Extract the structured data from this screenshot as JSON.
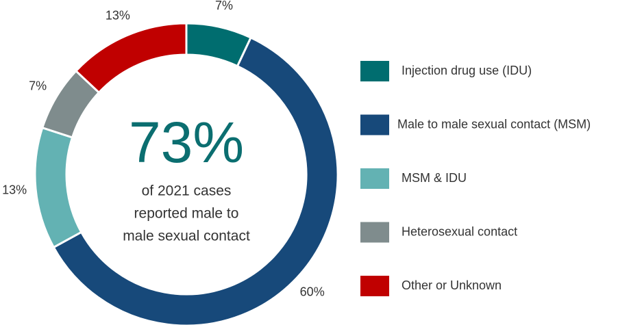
{
  "chart_data": {
    "type": "donut",
    "categories": [
      "Injection drug use (IDU)",
      "Male to male sexual contact (MSM)",
      "MSM & IDU",
      "Heterosexual contact",
      "Other or Unknown"
    ],
    "values": [
      7,
      60,
      13,
      7,
      13
    ],
    "value_labels": [
      "7%",
      "60%",
      "13%",
      "7%",
      "13%"
    ],
    "colors": [
      "#006d6f",
      "#17497a",
      "#63b2b3",
      "#7f8c8d",
      "#c00000"
    ],
    "center_label": "73%",
    "center_text": [
      "of 2021 cases",
      "reported male to",
      "male sexual contact"
    ],
    "legend": "right"
  }
}
